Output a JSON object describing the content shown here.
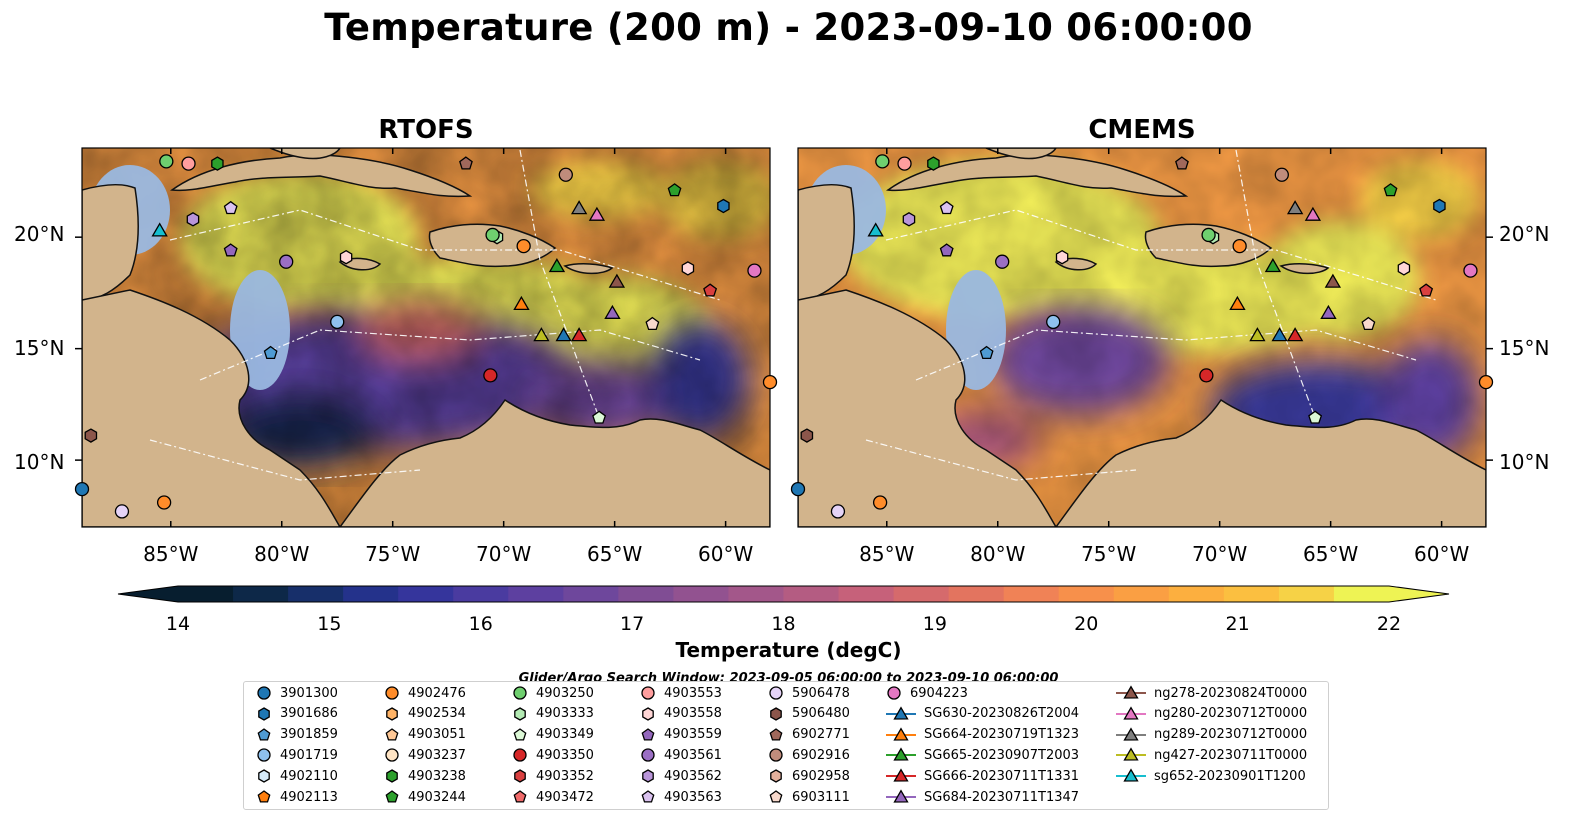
{
  "title": "Temperature (200 m) - 2023-09-10 06:00:00",
  "panels": [
    {
      "title": "RTOFS"
    },
    {
      "title": "CMEMS"
    }
  ],
  "axes": {
    "y_ticks": [
      "20°N",
      "15°N",
      "10°N"
    ],
    "x_ticks": [
      "85°W",
      "80°W",
      "75°W",
      "70°W",
      "65°W",
      "60°W"
    ]
  },
  "map": {
    "lon_range": [
      -89,
      -58
    ],
    "lat_range": [
      7,
      24
    ],
    "land_color": "#d2b48c",
    "shelf_color": "#9ab8e0"
  },
  "colorbar": {
    "label": "Temperature (degC)",
    "ticks": [
      "14",
      "15",
      "16",
      "17",
      "18",
      "19",
      "20",
      "21",
      "22"
    ],
    "min": 14,
    "max": 22,
    "colors": [
      "#071e2f",
      "#0d2848",
      "#172f6a",
      "#24328b",
      "#35359c",
      "#4a3ba0",
      "#5d40a0",
      "#6e479c",
      "#804d94",
      "#925290",
      "#a3578a",
      "#b45c82",
      "#c6617a",
      "#d56a6c",
      "#e3745f",
      "#f08256",
      "#f7904b",
      "#fa9f43",
      "#fcaf3f",
      "#fbbf40",
      "#f6d246",
      "#eef354"
    ],
    "extend_low_color": "#071e2f",
    "extend_high_color": "#eef354"
  },
  "search_window": "Glider/Argo Search Window: 2023-09-05 06:00:00 to 2023-09-10 06:00:00",
  "legend": {
    "columns": [
      [
        {
          "label": "3901300",
          "marker": "circle",
          "color": "#1f77b4"
        },
        {
          "label": "3901686",
          "marker": "hexagon",
          "color": "#1f77b4"
        },
        {
          "label": "3901859",
          "marker": "pentagon",
          "color": "#4f9bd3"
        },
        {
          "label": "4901719",
          "marker": "circle",
          "color": "#8fc1ee"
        },
        {
          "label": "4902110",
          "marker": "hexagon",
          "color": "#d6ebfb"
        },
        {
          "label": "4902113",
          "marker": "pentagon",
          "color": "#ff7f0e"
        }
      ],
      [
        {
          "label": "4902476",
          "marker": "circle",
          "color": "#ff8c2a"
        },
        {
          "label": "4902534",
          "marker": "hexagon",
          "color": "#ffb366"
        },
        {
          "label": "4903051",
          "marker": "pentagon",
          "color": "#ffc896"
        },
        {
          "label": "4903237",
          "marker": "circle",
          "color": "#ffe4c4"
        },
        {
          "label": "4903238",
          "marker": "hexagon",
          "color": "#2ca02c"
        },
        {
          "label": "4903244",
          "marker": "pentagon",
          "color": "#2ca02c"
        }
      ],
      [
        {
          "label": "4903250",
          "marker": "circle",
          "color": "#6fcf6f"
        },
        {
          "label": "4903333",
          "marker": "hexagon",
          "color": "#b3eab3"
        },
        {
          "label": "4903349",
          "marker": "pentagon",
          "color": "#dcf8d6"
        },
        {
          "label": "4903350",
          "marker": "circle",
          "color": "#d62728"
        },
        {
          "label": "4903352",
          "marker": "hexagon",
          "color": "#d94040"
        },
        {
          "label": "4903472",
          "marker": "pentagon",
          "color": "#f06a6a"
        }
      ],
      [
        {
          "label": "4903553",
          "marker": "circle",
          "color": "#ff9e9e"
        },
        {
          "label": "4903558",
          "marker": "hexagon",
          "color": "#ffd6d6"
        },
        {
          "label": "4903559",
          "marker": "pentagon",
          "color": "#9467bd"
        },
        {
          "label": "4903561",
          "marker": "circle",
          "color": "#9b6fc4"
        },
        {
          "label": "4903562",
          "marker": "hexagon",
          "color": "#b995d9"
        },
        {
          "label": "4903563",
          "marker": "pentagon",
          "color": "#dac2ef"
        }
      ],
      [
        {
          "label": "5906478",
          "marker": "circle",
          "color": "#e5d3f7"
        },
        {
          "label": "5906480",
          "marker": "hexagon",
          "color": "#8c564b"
        },
        {
          "label": "6902771",
          "marker": "pentagon",
          "color": "#a0685b"
        },
        {
          "label": "6902916",
          "marker": "circle",
          "color": "#c08c7c"
        },
        {
          "label": "6902958",
          "marker": "hexagon",
          "color": "#e3b09c"
        },
        {
          "label": "6903111",
          "marker": "pentagon",
          "color": "#f8d9cc"
        }
      ],
      [
        {
          "label": "6904223",
          "marker": "circle",
          "color": "#e377c2"
        },
        {
          "label": "SG630-20230826T2004",
          "marker": "triangle",
          "color": "#1f77b4"
        },
        {
          "label": "SG664-20230719T1323",
          "marker": "triangle",
          "color": "#ff7f0e"
        },
        {
          "label": "SG665-20230907T2003",
          "marker": "triangle",
          "color": "#2ca02c"
        },
        {
          "label": "SG666-20230711T1331",
          "marker": "triangle",
          "color": "#d62728"
        },
        {
          "label": "SG684-20230711T1347",
          "marker": "triangle",
          "color": "#9467bd"
        }
      ],
      [
        {
          "label": "ng278-20230824T0000",
          "marker": "triangle",
          "color": "#8c564b"
        },
        {
          "label": "ng280-20230712T0000",
          "marker": "triangle",
          "color": "#e377c2"
        },
        {
          "label": "ng289-20230712T0000",
          "marker": "triangle",
          "color": "#7f7f7f"
        },
        {
          "label": "ng427-20230711T0000",
          "marker": "triangle",
          "color": "#bcbd22"
        },
        {
          "label": "sg652-20230901T1200",
          "marker": "triangle",
          "color": "#17becf"
        }
      ]
    ]
  },
  "platforms": [
    {
      "lon": -85.2,
      "lat": 23.4,
      "marker": "circle",
      "color": "#6fcf6f"
    },
    {
      "lon": -84.2,
      "lat": 23.3,
      "marker": "circle",
      "color": "#ff9e9e"
    },
    {
      "lon": -82.9,
      "lat": 23.3,
      "marker": "hexagon",
      "color": "#2ca02c"
    },
    {
      "lon": -71.7,
      "lat": 23.3,
      "marker": "pentagon",
      "color": "#a0685b"
    },
    {
      "lon": -67.2,
      "lat": 22.8,
      "marker": "circle",
      "color": "#c08c7c"
    },
    {
      "lon": -62.3,
      "lat": 22.1,
      "marker": "pentagon",
      "color": "#2ca02c"
    },
    {
      "lon": -60.1,
      "lat": 21.4,
      "marker": "hexagon",
      "color": "#1f77b4"
    },
    {
      "lon": -84.0,
      "lat": 20.8,
      "marker": "hexagon",
      "color": "#b995d9"
    },
    {
      "lon": -82.3,
      "lat": 21.3,
      "marker": "pentagon",
      "color": "#dac2ef"
    },
    {
      "lon": -82.3,
      "lat": 19.4,
      "marker": "pentagon",
      "color": "#9467bd"
    },
    {
      "lon": -79.8,
      "lat": 18.9,
      "marker": "circle",
      "color": "#9b6fc4"
    },
    {
      "lon": -77.1,
      "lat": 19.1,
      "marker": "hexagon",
      "color": "#ffd6d6"
    },
    {
      "lon": -70.3,
      "lat": 20.0,
      "marker": "hexagon",
      "color": "#b3eab3"
    },
    {
      "lon": -70.5,
      "lat": 20.1,
      "marker": "circle",
      "color": "#6fcf6f"
    },
    {
      "lon": -69.1,
      "lat": 19.6,
      "marker": "circle",
      "color": "#ff8c2a"
    },
    {
      "lon": -61.7,
      "lat": 18.6,
      "marker": "hexagon",
      "color": "#ffd6d6"
    },
    {
      "lon": -58.7,
      "lat": 18.5,
      "marker": "circle",
      "color": "#e377c2"
    },
    {
      "lon": -60.7,
      "lat": 17.6,
      "marker": "pentagon",
      "color": "#d94040"
    },
    {
      "lon": -63.3,
      "lat": 16.1,
      "marker": "pentagon",
      "color": "#f8d9cc"
    },
    {
      "lon": -77.5,
      "lat": 16.2,
      "marker": "circle",
      "color": "#8fc1ee"
    },
    {
      "lon": -80.5,
      "lat": 14.8,
      "marker": "pentagon",
      "color": "#4f9bd3"
    },
    {
      "lon": -70.6,
      "lat": 13.8,
      "marker": "circle",
      "color": "#d62728"
    },
    {
      "lon": -65.7,
      "lat": 11.9,
      "marker": "pentagon",
      "color": "#dcf8d6"
    },
    {
      "lon": -88.6,
      "lat": 11.1,
      "marker": "hexagon",
      "color": "#8c564b"
    },
    {
      "lon": -89.0,
      "lat": 8.7,
      "marker": "circle",
      "color": "#1f77b4"
    },
    {
      "lon": -85.3,
      "lat": 8.1,
      "marker": "circle",
      "color": "#ff8c2a"
    },
    {
      "lon": -87.2,
      "lat": 7.7,
      "marker": "circle",
      "color": "#e5d3f7"
    },
    {
      "lon": -58.0,
      "lat": 13.5,
      "marker": "circle",
      "color": "#ff8c2a"
    },
    {
      "lon": -85.5,
      "lat": 20.3,
      "marker": "triangle",
      "color": "#17becf"
    },
    {
      "lon": -66.6,
      "lat": 21.3,
      "marker": "triangle",
      "color": "#7f7f7f"
    },
    {
      "lon": -65.8,
      "lat": 21.0,
      "marker": "triangle",
      "color": "#e377c2"
    },
    {
      "lon": -67.6,
      "lat": 18.7,
      "marker": "triangle",
      "color": "#2ca02c"
    },
    {
      "lon": -69.2,
      "lat": 17.0,
      "marker": "triangle",
      "color": "#ff7f0e"
    },
    {
      "lon": -64.9,
      "lat": 18.0,
      "marker": "triangle",
      "color": "#8c564b"
    },
    {
      "lon": -65.1,
      "lat": 16.6,
      "marker": "triangle",
      "color": "#9467bd"
    },
    {
      "lon": -68.3,
      "lat": 15.6,
      "marker": "triangle",
      "color": "#bcbd22"
    },
    {
      "lon": -67.3,
      "lat": 15.6,
      "marker": "triangle",
      "color": "#1f77b4"
    },
    {
      "lon": -66.6,
      "lat": 15.6,
      "marker": "triangle",
      "color": "#d62728"
    }
  ]
}
